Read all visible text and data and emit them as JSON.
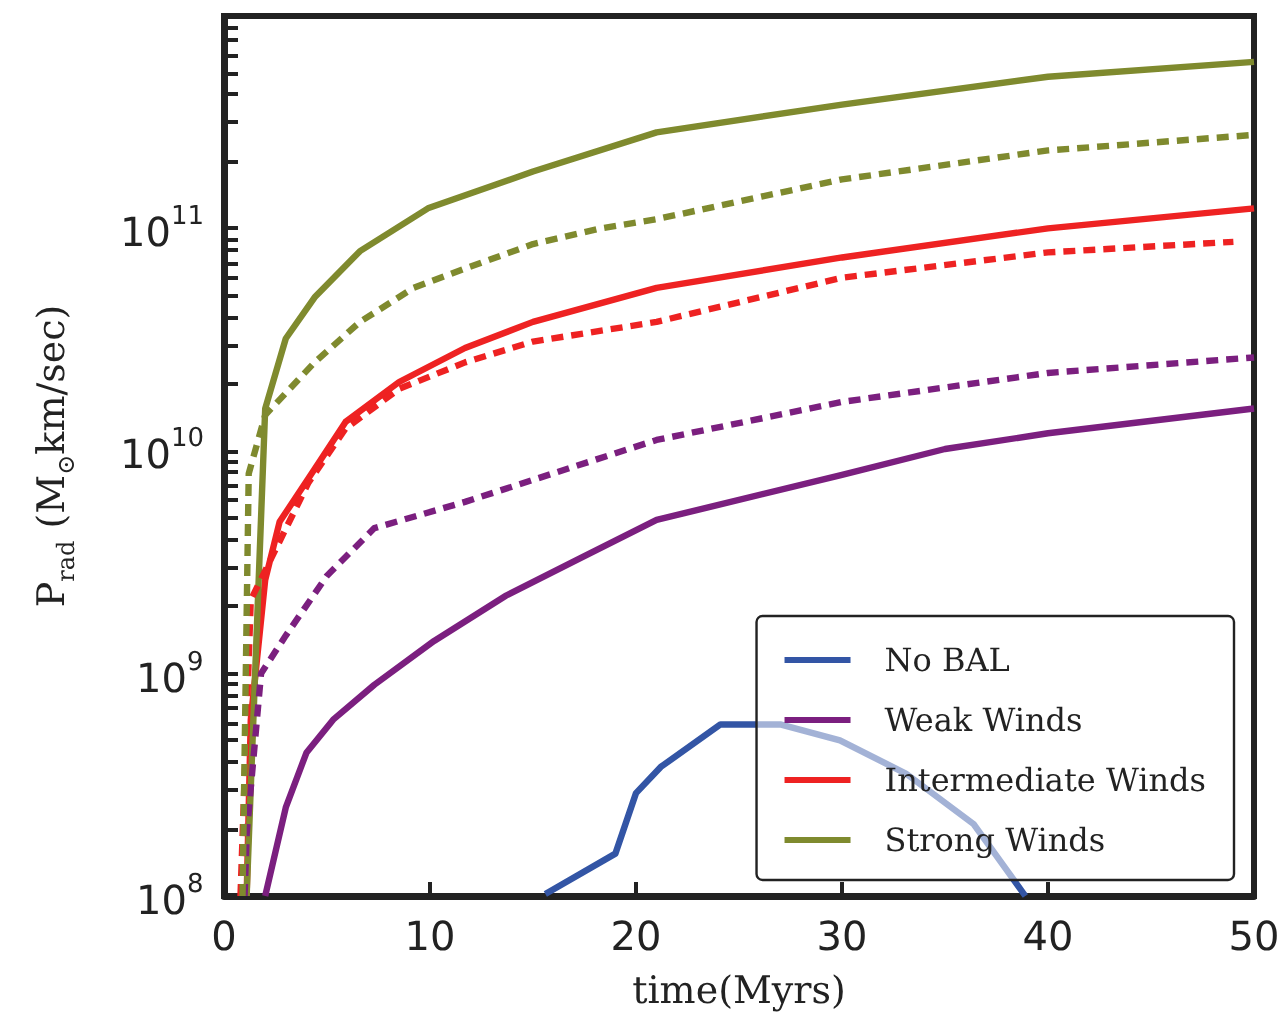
{
  "chart_data": {
    "type": "line",
    "xlabel": "time(Myrs)",
    "ylabel": "P$_{rad}$ (M$_{⊙}$km/sec)",
    "log": "y",
    "grid": false,
    "legend": "bottom right",
    "marker": "none",
    "xlim": [
      0,
      50
    ],
    "xticks": [
      0,
      10,
      20,
      30,
      40,
      50
    ],
    "ylim": [
      100000000.0,
      900000000000.0
    ],
    "yticks": [
      {
        "value": 100000000.0,
        "label": "10$^{8}$"
      },
      {
        "value": 200000000.0,
        "label": null
      },
      {
        "value": 300000000.0,
        "label": null
      },
      {
        "value": 400000000.0,
        "label": null
      },
      {
        "value": 500000000.0,
        "label": null
      },
      {
        "value": 600000000.0,
        "label": null
      },
      {
        "value": 700000000.0,
        "label": null
      },
      {
        "value": 800000000.0,
        "label": null
      },
      {
        "value": 900000000.0,
        "label": null
      },
      {
        "value": 1000000000.0,
        "label": "10$^{9}$"
      },
      {
        "value": 2000000000.0,
        "label": null
      },
      {
        "value": 3000000000.0,
        "label": null
      },
      {
        "value": 4000000000.0,
        "label": null
      },
      {
        "value": 5000000000.0,
        "label": null
      },
      {
        "value": 6000000000.0,
        "label": null
      },
      {
        "value": 7000000000.0,
        "label": null
      },
      {
        "value": 8000000000.0,
        "label": null
      },
      {
        "value": 9000000000.0,
        "label": null
      },
      {
        "value": 10000000000.0,
        "label": "10$^{10}$"
      },
      {
        "value": 20000000000.0,
        "label": null
      },
      {
        "value": 30000000000.0,
        "label": null
      },
      {
        "value": 40000000000.0,
        "label": null
      },
      {
        "value": 50000000000.0,
        "label": null
      },
      {
        "value": 60000000000.0,
        "label": null
      },
      {
        "value": 70000000000.0,
        "label": null
      },
      {
        "value": 80000000000.0,
        "label": null
      },
      {
        "value": 90000000000.0,
        "label": null
      },
      {
        "value": 100000000000.0,
        "label": "10$^{11}$"
      },
      {
        "value": 200000000000.0,
        "label": null
      },
      {
        "value": 300000000000.0,
        "label": null
      },
      {
        "value": 400000000000.0,
        "label": null
      },
      {
        "value": 500000000000.0,
        "label": null
      },
      {
        "value": 600000000000.0,
        "label": null
      },
      {
        "value": 700000000000.0,
        "label": null
      },
      {
        "value": 800000000000.0,
        "label": null
      }
    ],
    "series": [
      {
        "name": "No BAL",
        "color": "#3355a5",
        "line_style": "solid",
        "x": [
          15.6,
          19,
          20,
          21.2,
          24.1,
          27,
          29.9,
          33.1,
          36.4,
          38.9
        ],
        "values": [
          102000000.0,
          155000000.0,
          290000000.0,
          380000000.0,
          590000000.0,
          590000000.0,
          500000000.0,
          355000000.0,
          210000000.0,
          100000000.0
        ]
      },
      {
        "name": "Weak Winds",
        "color": "#7b1f7f",
        "line_style": "solid",
        "x": [
          2.0,
          3.0,
          4.0,
          5.3,
          7.3,
          10.2,
          13.7,
          17.3,
          21,
          30,
          35,
          40,
          50
        ],
        "values": [
          100000000.0,
          250000000.0,
          440000000.0,
          620000000.0,
          890000000.0,
          1400000000.0,
          2240000000.0,
          3300000000.0,
          4900000000.0,
          7800000000.0,
          10200000000.0,
          12000000000.0,
          15500000000.0
        ]
      },
      {
        "name": "Intermediate Winds",
        "color": "#ee2222",
        "line_style": "solid",
        "x": [
          1.1,
          1.3,
          2,
          2.7,
          4.4,
          5.9,
          8.5,
          11.7,
          15,
          21,
          30,
          40,
          50
        ],
        "values": [
          100000000.0,
          620000000.0,
          2630000000.0,
          4800000000.0,
          8300000000.0,
          13500000000.0,
          20400000000.0,
          29000000000.0,
          38000000000.0,
          54000000000.0,
          74000000000.0,
          100000000000.0,
          123000000000.0
        ]
      },
      {
        "name": "Strong Winds",
        "color": "#7f8a2e",
        "line_style": "solid",
        "x": [
          1.1,
          2,
          3,
          4.4,
          6.6,
          9.9,
          15,
          21,
          30,
          40,
          50
        ],
        "values": [
          100000000.0,
          15500000000.0,
          32000000000.0,
          49000000000.0,
          79000000000.0,
          123000000000.0,
          180000000000.0,
          270000000000.0,
          360000000000.0,
          480000000000.0,
          560000000000.0
        ]
      },
      {
        "color": "#7b1f7f",
        "line_style": "dashed",
        "x": [
          1.0,
          1.1,
          1.8,
          3.0,
          5.0,
          7.3,
          11.7,
          21,
          30,
          40,
          50
        ],
        "values": [
          100000000.0,
          190000000.0,
          1000000000.0,
          1480000000.0,
          2750000000.0,
          4500000000.0,
          5900000000.0,
          11200000000.0,
          16600000000.0,
          22400000000.0,
          26300000000.0
        ]
      },
      {
        "color": "#ee2222",
        "line_style": "dashed",
        "x": [
          0.8,
          1.3,
          4.1,
          5.9,
          8.5,
          11.7,
          15,
          21,
          30,
          40,
          49
        ],
        "values": [
          100000000.0,
          2140000000.0,
          7200000000.0,
          12600000000.0,
          19000000000.0,
          25000000000.0,
          31000000000.0,
          38000000000.0,
          60000000000.0,
          78000000000.0,
          87000000000.0
        ]
      },
      {
        "color": "#7f8a2e",
        "line_style": "dashed",
        "x": [
          0.9,
          1.2,
          2,
          4.4,
          6.6,
          9.2,
          11.7,
          15,
          18.3,
          21,
          30,
          40,
          50
        ],
        "values": [
          100000000.0,
          7900000000.0,
          14500000000.0,
          25000000000.0,
          38000000000.0,
          54000000000.0,
          66000000000.0,
          85000000000.0,
          100000000000.0,
          110000000000.0,
          166000000000.0,
          224000000000.0,
          263000000000.0
        ]
      }
    ]
  }
}
